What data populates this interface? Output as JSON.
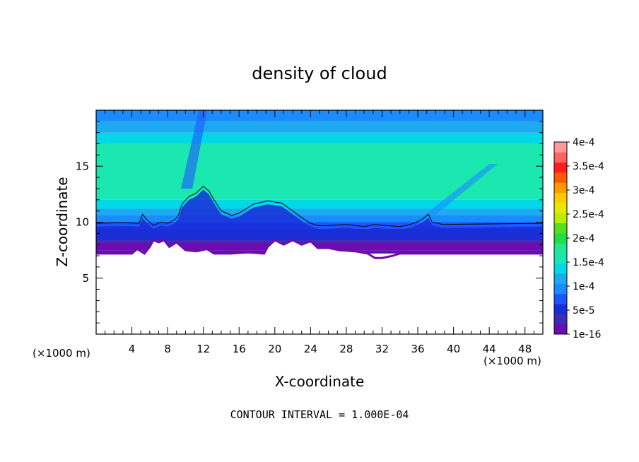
{
  "chart_data": {
    "type": "heatmap",
    "title": "density of cloud",
    "xlabel": "X-coordinate",
    "ylabel": "Z-coordinate",
    "x_unit": "(×1000 m)",
    "z_unit": "(×1000 m)",
    "xlim": [
      0,
      50
    ],
    "ylim": [
      0,
      20
    ],
    "x_ticks": [
      4,
      8,
      12,
      16,
      20,
      24,
      28,
      32,
      36,
      40,
      44,
      48
    ],
    "y_ticks": [
      5,
      10,
      15
    ],
    "colorbar": {
      "labels": [
        "1e-16",
        "5e-5",
        "1e-4",
        "1.5e-4",
        "2e-4",
        "2.5e-4",
        "3e-4",
        "3.5e-4",
        "4e-4"
      ],
      "values": [
        0,
        5e-05,
        0.0001,
        0.00015,
        0.0002,
        0.00025,
        0.0003,
        0.00035,
        0.0004
      ],
      "colors": [
        "#6a0db0",
        "#3b2fb8",
        "#1a2ed8",
        "#1f55ff",
        "#1a8cff",
        "#1eaaf0",
        "#00d8e8",
        "#1ae8b0",
        "#1ee896",
        "#22dd44",
        "#55e022",
        "#b8ee00",
        "#e8e800",
        "#ffcc00",
        "#ff9900",
        "#ff5a00",
        "#ff1e1e",
        "#ff6060",
        "#ff9a9a"
      ]
    },
    "cloud_base_z": 7.2,
    "cloud_top_z": 20,
    "bands": [
      {
        "z0": 7.2,
        "z1": 7.5,
        "value": 5e-06
      },
      {
        "z0": 7.5,
        "z1": 8.2,
        "value": 2e-05
      },
      {
        "z0": 8.2,
        "z1": 8.8,
        "value": 4e-05
      },
      {
        "z0": 8.8,
        "z1": 9.4,
        "value": 6e-05
      },
      {
        "z0": 9.4,
        "z1": 10.0,
        "value": 8e-05
      },
      {
        "z0": 10.0,
        "z1": 10.6,
        "value": 0.0001
      },
      {
        "z0": 10.6,
        "z1": 11.2,
        "value": 0.00012
      },
      {
        "z0": 11.2,
        "z1": 12.0,
        "value": 0.00014
      },
      {
        "z0": 12.0,
        "z1": 17.0,
        "value": 0.00016
      },
      {
        "z0": 17.0,
        "z1": 18.0,
        "value": 0.00014
      },
      {
        "z0": 18.0,
        "z1": 19.0,
        "value": 0.00012
      },
      {
        "z0": 19.0,
        "z1": 20.0,
        "value": 0.0001
      }
    ],
    "contour_line": [
      [
        0,
        9.9
      ],
      [
        3,
        9.95
      ],
      [
        4.8,
        9.9
      ],
      [
        5.2,
        10.7
      ],
      [
        5.6,
        10.3
      ],
      [
        6.4,
        9.7
      ],
      [
        7.2,
        10.0
      ],
      [
        8,
        9.9
      ],
      [
        8.8,
        10.2
      ],
      [
        9.2,
        10.6
      ],
      [
        9.6,
        11.6
      ],
      [
        10.4,
        12.3
      ],
      [
        11.2,
        12.6
      ],
      [
        12,
        13.2
      ],
      [
        12.6,
        12.8
      ],
      [
        13.2,
        12.0
      ],
      [
        14,
        11.0
      ],
      [
        15.2,
        10.6
      ],
      [
        16,
        10.8
      ],
      [
        17.6,
        11.6
      ],
      [
        19.2,
        11.9
      ],
      [
        20.8,
        11.7
      ],
      [
        22,
        11.0
      ],
      [
        23.2,
        10.3
      ],
      [
        24,
        9.9
      ],
      [
        24.8,
        9.7
      ],
      [
        26,
        9.7
      ],
      [
        28,
        9.8
      ],
      [
        30,
        9.6
      ],
      [
        31.2,
        9.8
      ],
      [
        32.4,
        9.7
      ],
      [
        34,
        9.6
      ],
      [
        35.2,
        9.8
      ],
      [
        36.4,
        10.2
      ],
      [
        37.2,
        10.7
      ],
      [
        37.6,
        10.0
      ],
      [
        38.8,
        9.8
      ],
      [
        50,
        9.9
      ]
    ],
    "bottom_edge": [
      [
        0,
        7.2
      ],
      [
        4,
        7.2
      ],
      [
        4.6,
        7.6
      ],
      [
        5.4,
        7.2
      ],
      [
        6,
        7.8
      ],
      [
        6.4,
        8.4
      ],
      [
        7,
        8.2
      ],
      [
        7.6,
        8.4
      ],
      [
        8.2,
        7.8
      ],
      [
        9,
        8.2
      ],
      [
        10,
        7.5
      ],
      [
        11.2,
        7.4
      ],
      [
        12.4,
        7.6
      ],
      [
        13.2,
        7.2
      ],
      [
        15,
        7.2
      ],
      [
        17,
        7.3
      ],
      [
        18.8,
        7.2
      ],
      [
        19.2,
        7.8
      ],
      [
        20,
        8.4
      ],
      [
        21,
        8.0
      ],
      [
        22,
        8.4
      ],
      [
        23,
        8.0
      ],
      [
        24,
        8.3
      ],
      [
        24.8,
        7.7
      ],
      [
        26,
        7.7
      ],
      [
        27.2,
        7.5
      ],
      [
        29,
        7.4
      ],
      [
        30.4,
        7.2
      ],
      [
        31.2,
        6.8
      ],
      [
        32,
        6.8
      ],
      [
        33.2,
        7.0
      ],
      [
        34,
        7.2
      ],
      [
        50,
        7.2
      ]
    ],
    "updraft_plumes": [
      {
        "x": [
          9.5,
          11.5
        ],
        "z": [
          13,
          20
        ],
        "value": 8e-05
      },
      {
        "x": [
          36.5,
          44
        ],
        "z": [
          10.5,
          15.2
        ],
        "value": 0.0001
      }
    ],
    "footer": "CONTOUR INTERVAL = 1.000E-04"
  }
}
